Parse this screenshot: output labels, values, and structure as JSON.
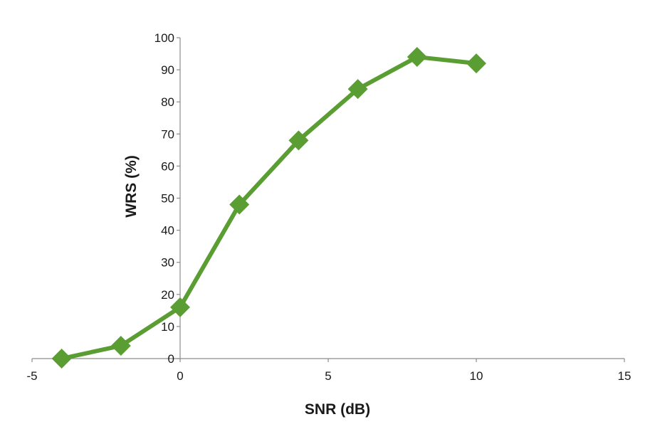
{
  "chart_data": {
    "type": "line",
    "xlabel": "SNR (dB)",
    "ylabel": "WRS (%)",
    "xlim": [
      -5,
      15
    ],
    "ylim": [
      0,
      100
    ],
    "x_ticks": [
      -5,
      0,
      5,
      10,
      15
    ],
    "y_ticks": [
      0,
      10,
      20,
      30,
      40,
      50,
      60,
      70,
      80,
      90,
      100
    ],
    "x_tick_labels": [
      "-5",
      "0",
      "5",
      "10",
      "15"
    ],
    "y_tick_labels": [
      "0",
      "10",
      "20",
      "30",
      "40",
      "50",
      "60",
      "70",
      "80",
      "90",
      "100"
    ],
    "grid": false,
    "series": [
      {
        "color": "#5a9e33",
        "marker": "diamond",
        "x": [
          -4,
          -2,
          0,
          2,
          4,
          6,
          8,
          10
        ],
        "y": [
          0,
          4,
          16,
          48,
          68,
          84,
          94,
          92
        ]
      }
    ]
  }
}
